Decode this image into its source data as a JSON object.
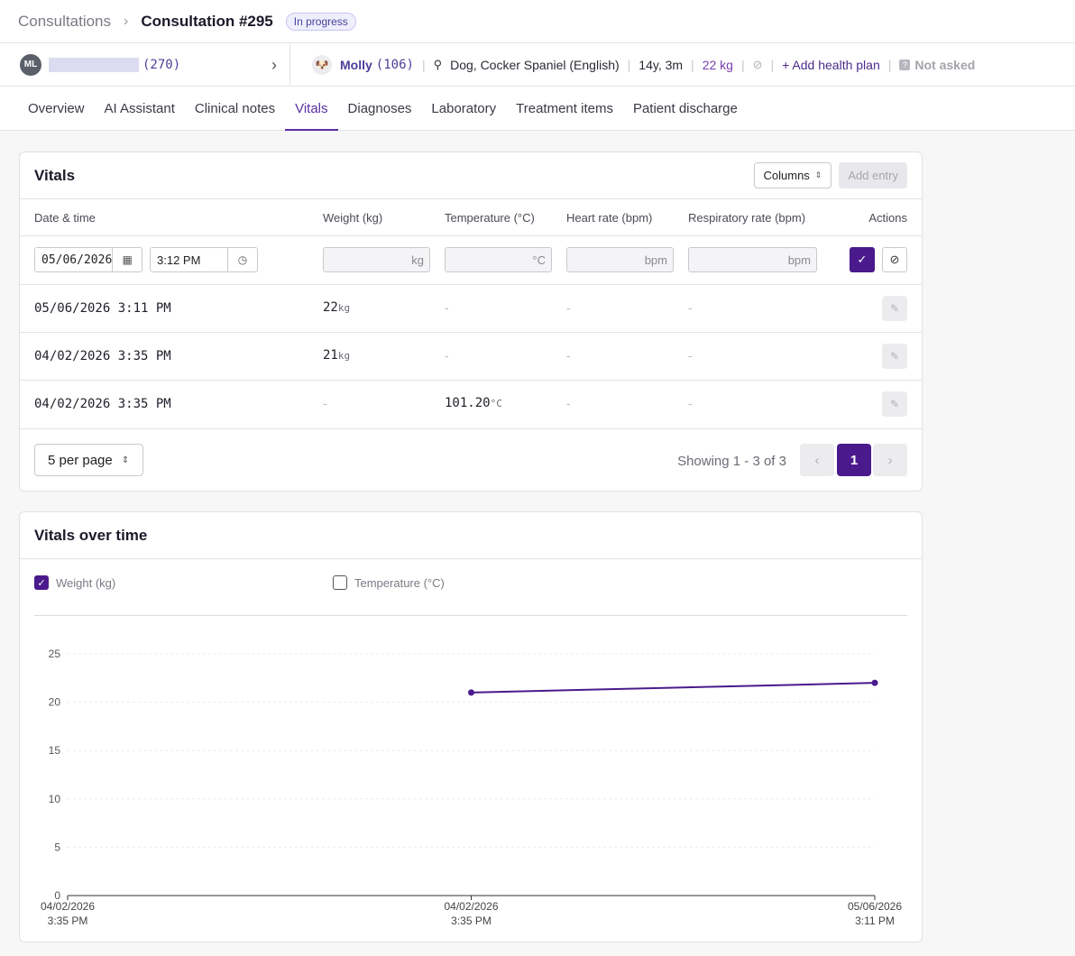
{
  "breadcrumb": {
    "parent": "Consultations",
    "title": "Consultation #295",
    "status": "In progress"
  },
  "owner": {
    "initials": "ML",
    "id": "(270)"
  },
  "patient": {
    "name": "Molly",
    "id": "(106)",
    "breed": "Dog, Cocker Spaniel (English)",
    "age": "14y, 3m",
    "weight": "22 kg",
    "add_health_plan": "Add health plan",
    "insurance": "Not asked"
  },
  "tabs": [
    "Overview",
    "AI Assistant",
    "Clinical notes",
    "Vitals",
    "Diagnoses",
    "Laboratory",
    "Treatment items",
    "Patient discharge"
  ],
  "vitals": {
    "title": "Vitals",
    "columns_button": "Columns",
    "add_entry_button": "Add entry",
    "headers": {
      "datetime": "Date & time",
      "weight": "Weight (kg)",
      "temperature": "Temperature (°C)",
      "heart": "Heart rate (bpm)",
      "resp": "Respiratory rate (bpm)",
      "actions": "Actions"
    },
    "new_entry": {
      "date": "05/06/2026",
      "time": "3:12 PM",
      "weight_unit": "kg",
      "temp_unit": "°C",
      "heart_unit": "bpm",
      "resp_unit": "bpm"
    },
    "rows": [
      {
        "datetime": "05/06/2026 3:11 PM",
        "weight": "22",
        "weight_unit": "kg",
        "temperature": "-",
        "heart": "-",
        "resp": "-"
      },
      {
        "datetime": "04/02/2026 3:35 PM",
        "weight": "21",
        "weight_unit": "kg",
        "temperature": "-",
        "heart": "-",
        "resp": "-"
      },
      {
        "datetime": "04/02/2026 3:35 PM",
        "weight": "-",
        "temperature": "101.20",
        "temp_unit": "°C",
        "heart": "-",
        "resp": "-"
      }
    ],
    "per_page": "5 per page",
    "showing": "Showing 1 - 3 of 3",
    "current_page": "1"
  },
  "chart_section": {
    "title": "Vitals over time",
    "legend_weight": "Weight (kg)",
    "legend_temperature": "Temperature (°C)",
    "weight_checked": true,
    "temperature_checked": false
  },
  "chart_data": {
    "type": "line",
    "x": [
      {
        "date": "04/02/2026",
        "time": "3:35 PM"
      },
      {
        "date": "04/02/2026",
        "time": "3:35 PM"
      },
      {
        "date": "05/06/2026",
        "time": "3:11 PM"
      }
    ],
    "series": [
      {
        "name": "Weight (kg)",
        "values": [
          null,
          21,
          22
        ],
        "color": "#4a1a8c"
      }
    ],
    "yticks": [
      0,
      5,
      10,
      15,
      20,
      25
    ],
    "ylim": [
      0,
      25
    ],
    "grid": true
  },
  "colors": {
    "accent": "#4a1a8c",
    "link": "#4b3f9a"
  }
}
